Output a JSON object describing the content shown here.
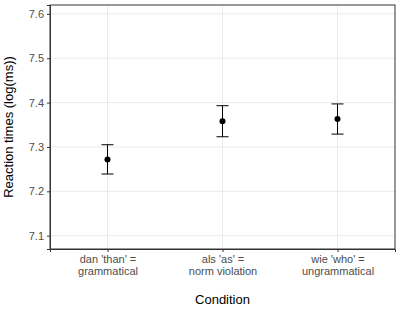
{
  "chart_data": {
    "type": "scatter",
    "x_label": "Condition",
    "y_label": "Reaction times (log(ms))",
    "categories": [
      "dan 'than' =\ngrammatical",
      "als 'as' =\nnorm violation",
      "wie 'who' =\nungrammatical"
    ],
    "values": [
      7.272,
      7.358,
      7.363
    ],
    "errors": [
      0.033,
      0.035,
      0.034
    ],
    "color": "#000000",
    "marker": "point",
    "ylim": [
      7.07,
      7.62
    ],
    "yticks": [
      7.1,
      7.2,
      7.3,
      7.4,
      7.5,
      7.6
    ],
    "grid": true
  }
}
